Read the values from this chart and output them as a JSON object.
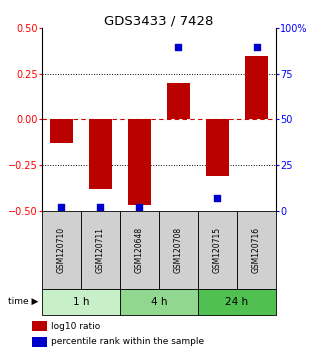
{
  "title": "GDS3433 / 7428",
  "samples": [
    "GSM120710",
    "GSM120711",
    "GSM120648",
    "GSM120708",
    "GSM120715",
    "GSM120716"
  ],
  "log10_ratio": [
    -0.13,
    -0.38,
    -0.47,
    0.2,
    -0.31,
    0.35
  ],
  "percentile_rank": [
    2,
    2,
    2,
    90,
    7,
    90
  ],
  "time_groups": [
    {
      "label": "1 h",
      "samples": [
        0,
        1
      ],
      "color": "#c8f0c8"
    },
    {
      "label": "4 h",
      "samples": [
        2,
        3
      ],
      "color": "#90d890"
    },
    {
      "label": "24 h",
      "samples": [
        4,
        5
      ],
      "color": "#50c050"
    }
  ],
  "bar_color": "#bb0000",
  "dot_color": "#0000cc",
  "ylim_left": [
    -0.5,
    0.5
  ],
  "ylim_right": [
    0,
    100
  ],
  "yticks_left": [
    -0.5,
    -0.25,
    0,
    0.25,
    0.5
  ],
  "yticks_right": [
    0,
    25,
    50,
    75,
    100
  ],
  "ytick_labels_right": [
    "0",
    "25",
    "50",
    "75",
    "100%"
  ],
  "hlines_dotted": [
    -0.25,
    0.25
  ],
  "hline_dashed_color": "#cc0000",
  "bg_plot": "#ffffff",
  "bg_sample_box": "#d0d0d0",
  "legend_items": [
    "log10 ratio",
    "percentile rank within the sample"
  ],
  "bar_width": 0.6
}
